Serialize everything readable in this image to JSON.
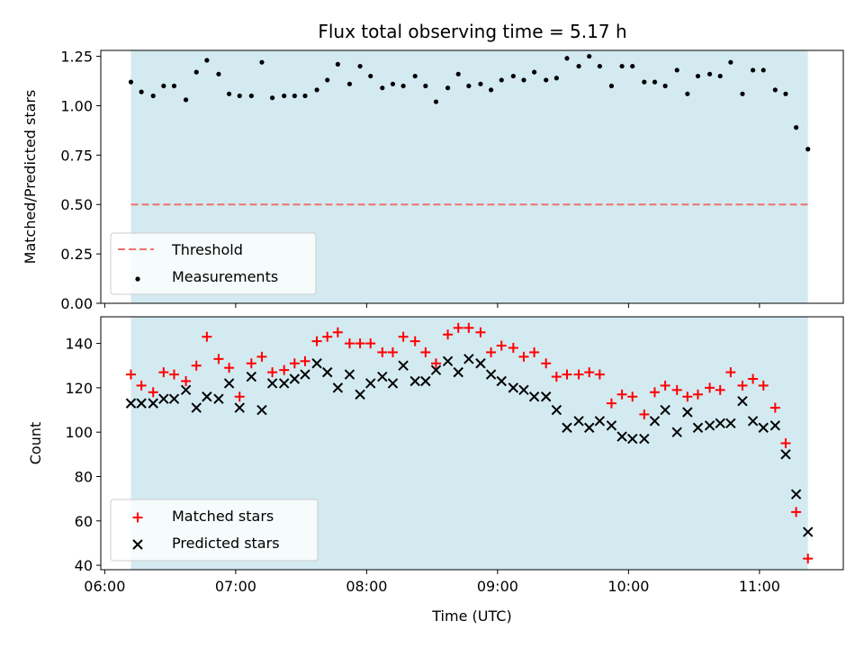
{
  "chart_data": {
    "type": "scatter",
    "title": "Flux total observing time = 5.17 h",
    "shared_x": {
      "label": "Time (UTC)",
      "tick_labels": [
        "06:00",
        "07:00",
        "08:00",
        "09:00",
        "10:00",
        "11:00"
      ],
      "tick_hours": [
        6,
        7,
        8,
        9,
        10,
        11
      ],
      "range_hours": [
        5.97,
        11.64
      ],
      "observing_window_hours": [
        6.2,
        11.37
      ],
      "observing_window_color": "#d3eaf1"
    },
    "panels": [
      {
        "id": "ratio",
        "ylabel": "Matched/Predicted stars",
        "ylim": [
          0,
          1.28
        ],
        "yticks": [
          0,
          0.25,
          0.5,
          0.75,
          1.0,
          1.25
        ],
        "ytick_labels": [
          "0.00",
          "0.25",
          "0.50",
          "0.75",
          "1.00",
          "1.25"
        ],
        "threshold": {
          "name": "Threshold",
          "value": 0.5,
          "color": "#f07070"
        },
        "legend": {
          "location": "lower-left",
          "entries": [
            "Threshold",
            "Measurements"
          ]
        },
        "series": [
          {
            "name": "Measurements",
            "marker": "dot",
            "color": "#000000",
            "x": [
              6.2,
              6.28,
              6.37,
              6.45,
              6.53,
              6.62,
              6.7,
              6.78,
              6.87,
              6.95,
              7.03,
              7.12,
              7.2,
              7.28,
              7.37,
              7.45,
              7.53,
              7.62,
              7.7,
              7.78,
              7.87,
              7.95,
              8.03,
              8.12,
              8.2,
              8.28,
              8.37,
              8.45,
              8.53,
              8.62,
              8.7,
              8.78,
              8.87,
              8.95,
              9.03,
              9.12,
              9.2,
              9.28,
              9.37,
              9.45,
              9.53,
              9.62,
              9.7,
              9.78,
              9.87,
              9.95,
              10.03,
              10.12,
              10.2,
              10.28,
              10.37,
              10.45,
              10.53,
              10.62,
              10.7,
              10.78,
              10.87,
              10.95,
              11.03,
              11.12,
              11.2,
              11.28,
              11.37
            ],
            "y": [
              1.12,
              1.07,
              1.05,
              1.1,
              1.1,
              1.03,
              1.17,
              1.23,
              1.16,
              1.06,
              1.05,
              1.05,
              1.22,
              1.04,
              1.05,
              1.05,
              1.05,
              1.08,
              1.13,
              1.21,
              1.11,
              1.2,
              1.15,
              1.09,
              1.11,
              1.1,
              1.15,
              1.1,
              1.02,
              1.09,
              1.16,
              1.1,
              1.11,
              1.08,
              1.13,
              1.15,
              1.13,
              1.17,
              1.13,
              1.14,
              1.24,
              1.2,
              1.25,
              1.2,
              1.1,
              1.2,
              1.2,
              1.12,
              1.12,
              1.1,
              1.18,
              1.06,
              1.15,
              1.16,
              1.15,
              1.22,
              1.06,
              1.18,
              1.18,
              1.08,
              1.06,
              0.89,
              0.78
            ]
          }
        ]
      },
      {
        "id": "count",
        "ylabel": "Count",
        "ylim": [
          38,
          152
        ],
        "yticks": [
          40,
          60,
          80,
          100,
          120,
          140
        ],
        "ytick_labels": [
          "40",
          "60",
          "80",
          "100",
          "120",
          "140"
        ],
        "legend": {
          "location": "lower-left",
          "entries": [
            "Matched stars",
            "Predicted stars"
          ]
        },
        "series": [
          {
            "name": "Matched stars",
            "marker": "plus",
            "color": "#ff0000",
            "x": [
              6.2,
              6.28,
              6.37,
              6.45,
              6.53,
              6.62,
              6.7,
              6.78,
              6.87,
              6.95,
              7.03,
              7.12,
              7.2,
              7.28,
              7.37,
              7.45,
              7.53,
              7.62,
              7.7,
              7.78,
              7.87,
              7.95,
              8.03,
              8.12,
              8.2,
              8.28,
              8.37,
              8.45,
              8.53,
              8.62,
              8.7,
              8.78,
              8.87,
              8.95,
              9.03,
              9.12,
              9.2,
              9.28,
              9.37,
              9.45,
              9.53,
              9.62,
              9.7,
              9.78,
              9.87,
              9.95,
              10.03,
              10.12,
              10.2,
              10.28,
              10.37,
              10.45,
              10.53,
              10.62,
              10.7,
              10.78,
              10.87,
              10.95,
              11.03,
              11.12,
              11.2,
              11.28,
              11.37
            ],
            "y": [
              126,
              121,
              118,
              127,
              126,
              123,
              130,
              143,
              133,
              129,
              116,
              131,
              134,
              127,
              128,
              131,
              132,
              141,
              143,
              145,
              140,
              140,
              140,
              136,
              136,
              143,
              141,
              136,
              131,
              144,
              147,
              147,
              145,
              136,
              139,
              138,
              134,
              136,
              131,
              125,
              126,
              126,
              127,
              126,
              113,
              117,
              116,
              108,
              118,
              121,
              119,
              116,
              117,
              120,
              119,
              127,
              121,
              124,
              121,
              111,
              95,
              64,
              43
            ]
          },
          {
            "name": "Predicted stars",
            "marker": "x",
            "color": "#000000",
            "x": [
              6.2,
              6.28,
              6.37,
              6.45,
              6.53,
              6.62,
              6.7,
              6.78,
              6.87,
              6.95,
              7.03,
              7.12,
              7.2,
              7.28,
              7.37,
              7.45,
              7.53,
              7.62,
              7.7,
              7.78,
              7.87,
              7.95,
              8.03,
              8.12,
              8.2,
              8.28,
              8.37,
              8.45,
              8.53,
              8.62,
              8.7,
              8.78,
              8.87,
              8.95,
              9.03,
              9.12,
              9.2,
              9.28,
              9.37,
              9.45,
              9.53,
              9.62,
              9.7,
              9.78,
              9.87,
              9.95,
              10.03,
              10.12,
              10.2,
              10.28,
              10.37,
              10.45,
              10.53,
              10.62,
              10.7,
              10.78,
              10.87,
              10.95,
              11.03,
              11.12,
              11.2,
              11.28,
              11.37
            ],
            "y": [
              113,
              113,
              113,
              115,
              115,
              119,
              111,
              116,
              115,
              122,
              111,
              125,
              110,
              122,
              122,
              124,
              126,
              131,
              127,
              120,
              126,
              117,
              122,
              125,
              122,
              130,
              123,
              123,
              128,
              132,
              127,
              133,
              131,
              126,
              123,
              120,
              119,
              116,
              116,
              110,
              102,
              105,
              102,
              105,
              103,
              98,
              97,
              97,
              105,
              110,
              100,
              109,
              102,
              103,
              104,
              104,
              114,
              105,
              102,
              103,
              90,
              72,
              55
            ]
          }
        ]
      }
    ]
  }
}
